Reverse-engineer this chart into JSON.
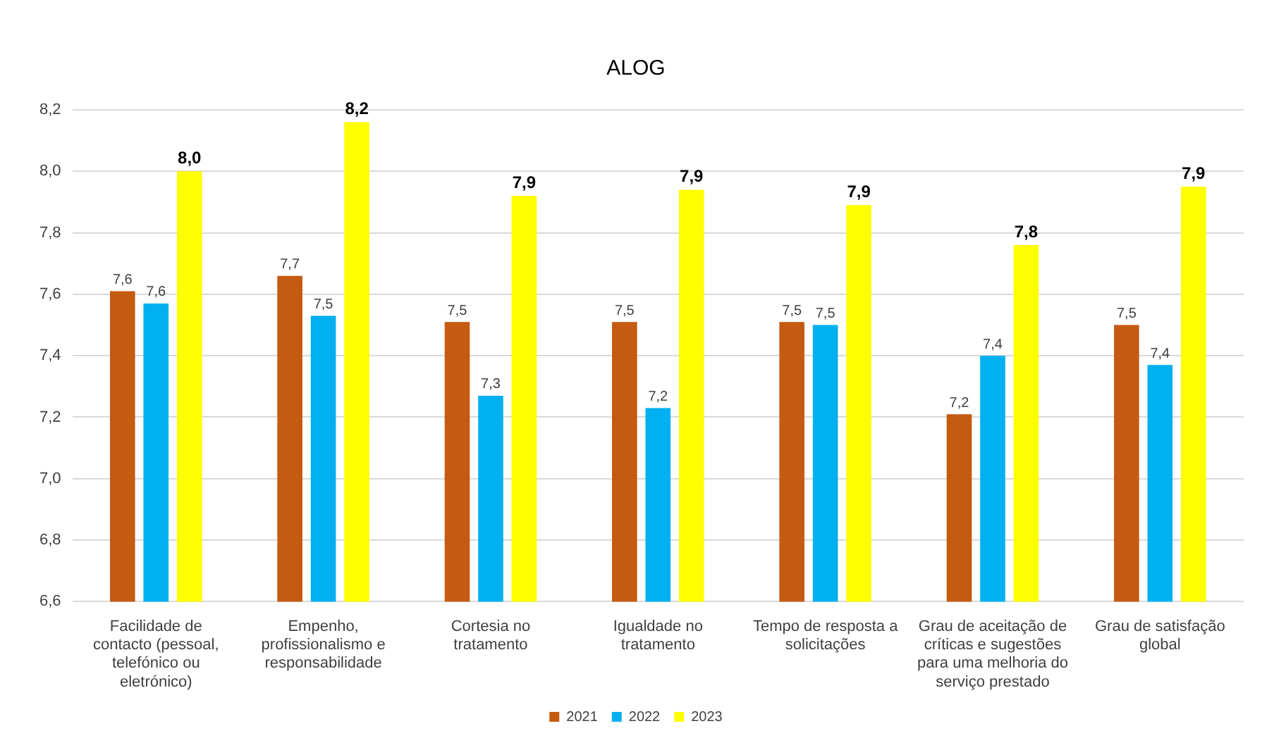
{
  "chart_data": {
    "type": "bar",
    "title": "ALOG",
    "categories": [
      "Facilidade de contacto (pessoal, telefónico ou eletrónico)",
      "Empenho, profissionalismo e responsabilidade",
      "Cortesia no tratamento",
      "Igualdade no tratamento",
      "Tempo de resposta a solicitações",
      "Grau de aceitação de críticas e sugestões para uma melhoria do serviço prestado",
      "Grau de satisfação global"
    ],
    "series": [
      {
        "name": "2021",
        "color": "#c55a11",
        "values": [
          7.61,
          7.66,
          7.51,
          7.51,
          7.51,
          7.21,
          7.5
        ],
        "value_labels": [
          "7,6",
          "7,7",
          "7,5",
          "7,5",
          "7,5",
          "7,2",
          "7,5"
        ]
      },
      {
        "name": "2022",
        "color": "#00b0f0",
        "values": [
          7.57,
          7.53,
          7.27,
          7.23,
          7.5,
          7.4,
          7.37
        ],
        "value_labels": [
          "7,6",
          "7,5",
          "7,3",
          "7,2",
          "7,5",
          "7,4",
          "7,4"
        ]
      },
      {
        "name": "2023",
        "color": "#ffff00",
        "values": [
          8.0,
          8.16,
          7.92,
          7.94,
          7.89,
          7.76,
          7.95
        ],
        "value_labels": [
          "8,0",
          "8,2",
          "7,9",
          "7,9",
          "7,9",
          "7,8",
          "7,9"
        ]
      }
    ],
    "ylim": [
      6.6,
      8.2
    ],
    "yticks": [
      {
        "value": 6.6,
        "label": "6,6"
      },
      {
        "value": 6.8,
        "label": "6,8"
      },
      {
        "value": 7.0,
        "label": "7,0"
      },
      {
        "value": 7.2,
        "label": "7,2"
      },
      {
        "value": 7.4,
        "label": "7,4"
      },
      {
        "value": 7.6,
        "label": "7,6"
      },
      {
        "value": 7.8,
        "label": "7,8"
      },
      {
        "value": 8.0,
        "label": "8,0"
      },
      {
        "value": 8.2,
        "label": "8,2"
      }
    ],
    "grid": "y",
    "legend": "bottom"
  }
}
